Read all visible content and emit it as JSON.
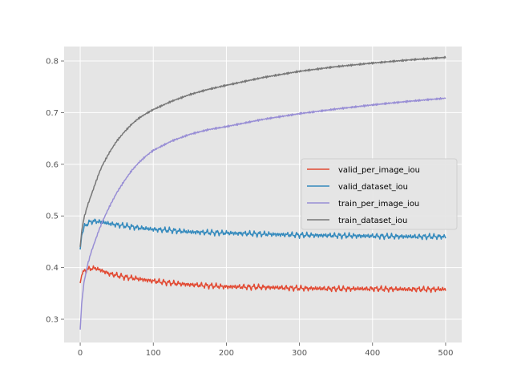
{
  "chart_data": {
    "type": "line",
    "title": "",
    "xlabel": "",
    "ylabel": "",
    "xlim": [
      -22,
      522
    ],
    "ylim": [
      0.255,
      0.828
    ],
    "xticks": [
      0,
      100,
      200,
      300,
      400,
      500
    ],
    "yticks": [
      0.3,
      0.4,
      0.5,
      0.6,
      0.7,
      0.8
    ],
    "xtick_labels": [
      "0",
      "100",
      "200",
      "300",
      "400",
      "500"
    ],
    "ytick_labels": [
      "0.3",
      "0.4",
      "0.5",
      "0.6",
      "0.7",
      "0.8"
    ],
    "grid": true,
    "background": "#e5e5e5",
    "legend_position": "center-right",
    "series": [
      {
        "name": "valid_per_image_iou",
        "color": "#e24a33",
        "x": [
          0,
          2,
          5,
          10,
          15,
          20,
          30,
          40,
          60,
          80,
          100,
          125,
          150,
          175,
          200,
          250,
          300,
          350,
          400,
          450,
          500
        ],
        "y": [
          0.37,
          0.385,
          0.392,
          0.397,
          0.398,
          0.399,
          0.394,
          0.388,
          0.382,
          0.378,
          0.374,
          0.37,
          0.367,
          0.365,
          0.363,
          0.362,
          0.36,
          0.359,
          0.359,
          0.358,
          0.358
        ]
      },
      {
        "name": "valid_dataset_iou",
        "color": "#348abd",
        "x": [
          0,
          2,
          5,
          10,
          15,
          20,
          30,
          40,
          60,
          80,
          100,
          125,
          150,
          175,
          200,
          250,
          300,
          350,
          400,
          450,
          500
        ],
        "y": [
          0.435,
          0.462,
          0.477,
          0.486,
          0.489,
          0.49,
          0.488,
          0.485,
          0.481,
          0.477,
          0.474,
          0.472,
          0.469,
          0.468,
          0.467,
          0.465,
          0.463,
          0.462,
          0.461,
          0.46,
          0.46
        ]
      },
      {
        "name": "train_per_image_iou",
        "color": "#988ed5",
        "x": [
          0,
          2,
          5,
          10,
          15,
          20,
          25,
          30,
          40,
          50,
          60,
          70,
          80,
          90,
          100,
          125,
          150,
          175,
          200,
          250,
          300,
          350,
          400,
          450,
          500
        ],
        "y": [
          0.28,
          0.33,
          0.37,
          0.405,
          0.43,
          0.45,
          0.47,
          0.488,
          0.518,
          0.545,
          0.567,
          0.587,
          0.603,
          0.616,
          0.627,
          0.645,
          0.658,
          0.667,
          0.673,
          0.687,
          0.698,
          0.707,
          0.715,
          0.722,
          0.728
        ]
      },
      {
        "name": "train_dataset_iou",
        "color": "#777777",
        "x": [
          0,
          2,
          5,
          10,
          15,
          20,
          25,
          30,
          40,
          50,
          60,
          70,
          80,
          90,
          100,
          125,
          150,
          175,
          200,
          250,
          300,
          350,
          400,
          450,
          500
        ],
        "y": [
          0.44,
          0.47,
          0.495,
          0.52,
          0.54,
          0.56,
          0.58,
          0.597,
          0.623,
          0.645,
          0.662,
          0.677,
          0.689,
          0.698,
          0.706,
          0.722,
          0.735,
          0.745,
          0.753,
          0.768,
          0.78,
          0.789,
          0.796,
          0.802,
          0.807
        ]
      }
    ]
  }
}
